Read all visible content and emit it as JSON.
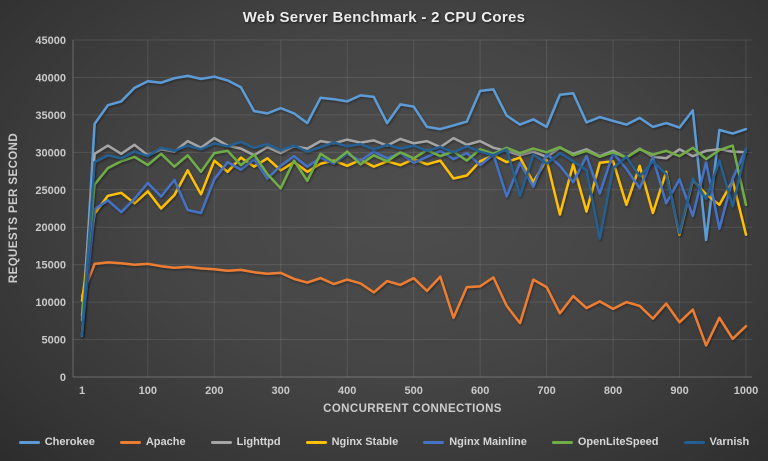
{
  "chart_data": {
    "type": "line",
    "title": "Web Server Benchmark - 2 CPU Cores",
    "xlabel": "CONCURRENT CONNECTIONS",
    "ylabel": "REQUESTS PER SECOND",
    "ylim": [
      0,
      45000
    ],
    "y_tick_step": 5000,
    "x_tick_labels": [
      1,
      100,
      200,
      300,
      400,
      500,
      600,
      700,
      800,
      900,
      1000
    ],
    "grid": true,
    "legend_position": "bottom",
    "colors": {
      "background_center": "#4e4e4e",
      "background_edge": "#262626",
      "gridline": "rgba(255,255,255,0.10)",
      "axis_line": "rgba(255,255,255,0.25)",
      "tick_text": "#c9c9c9",
      "title_text": "#ededed"
    },
    "x": [
      1,
      20,
      40,
      60,
      80,
      100,
      120,
      140,
      160,
      180,
      200,
      220,
      240,
      260,
      280,
      300,
      320,
      340,
      360,
      380,
      400,
      420,
      440,
      460,
      480,
      500,
      520,
      540,
      560,
      580,
      600,
      620,
      640,
      660,
      680,
      700,
      720,
      740,
      760,
      780,
      800,
      820,
      840,
      860,
      880,
      900,
      920,
      940,
      960,
      980,
      1000
    ],
    "series": [
      {
        "name": "Cherokee",
        "color": "#5B9BD5",
        "values": [
          5500,
          33800,
          36300,
          36800,
          38600,
          39500,
          39300,
          39900,
          40200,
          39800,
          40100,
          39600,
          38700,
          35500,
          35200,
          35900,
          35200,
          33900,
          37300,
          37100,
          36800,
          37600,
          37400,
          33900,
          36400,
          36100,
          33400,
          33100,
          33600,
          34100,
          38200,
          38400,
          34900,
          33700,
          34400,
          33400,
          37700,
          37900,
          34000,
          34700,
          34200,
          33700,
          34600,
          33400,
          33900,
          33300,
          35600,
          18300,
          33000,
          32500,
          33100
        ]
      },
      {
        "name": "Apache",
        "color": "#ED7D31",
        "values": [
          10800,
          15100,
          15300,
          15200,
          15000,
          15100,
          14800,
          14600,
          14700,
          14500,
          14400,
          14200,
          14300,
          14000,
          13800,
          13900,
          13100,
          12600,
          13200,
          12400,
          13000,
          12500,
          11300,
          12800,
          12300,
          13200,
          11500,
          13400,
          7900,
          12000,
          12100,
          13300,
          9500,
          7200,
          13000,
          12000,
          8500,
          10800,
          9200,
          10100,
          9100,
          10000,
          9500,
          7800,
          9800,
          7300,
          9000,
          4200,
          7900,
          5100,
          6800
        ]
      },
      {
        "name": "Lighttpd",
        "color": "#A5A5A5",
        "values": [
          8200,
          29800,
          30900,
          29800,
          31000,
          29600,
          30400,
          30100,
          31500,
          30600,
          31900,
          30900,
          30500,
          29600,
          30700,
          29900,
          30800,
          30500,
          31500,
          31200,
          31700,
          31300,
          31600,
          30900,
          31800,
          31200,
          31500,
          30700,
          31900,
          31000,
          31500,
          30600,
          30200,
          29600,
          30100,
          29400,
          30600,
          29800,
          30400,
          29500,
          30200,
          29300,
          30500,
          29400,
          29200,
          30400,
          29500,
          30200,
          30400,
          30100,
          30000
        ]
      },
      {
        "name": "Nginx Stable",
        "color": "#FFC000",
        "values": [
          10200,
          21800,
          24200,
          24600,
          23200,
          24800,
          22500,
          24300,
          27600,
          24400,
          28900,
          27400,
          29300,
          28100,
          29200,
          27600,
          28700,
          27400,
          28500,
          28900,
          28200,
          29000,
          28100,
          28800,
          28300,
          29100,
          28400,
          28900,
          26500,
          26900,
          28800,
          29600,
          28700,
          29300,
          26000,
          29000,
          21700,
          28400,
          22100,
          28600,
          28800,
          23000,
          28200,
          21900,
          27400,
          19000,
          26300,
          24400,
          23000,
          26200,
          19000
        ]
      },
      {
        "name": "Nginx Mainline",
        "color": "#4472C4",
        "values": [
          5800,
          22400,
          23600,
          22000,
          23800,
          25900,
          24100,
          26300,
          22300,
          21900,
          26400,
          28700,
          27700,
          29100,
          26500,
          28200,
          29500,
          28100,
          29300,
          28500,
          29800,
          28900,
          30100,
          29200,
          29900,
          28600,
          29400,
          30200,
          29100,
          29900,
          28300,
          29700,
          24100,
          28600,
          25400,
          29800,
          28200,
          26000,
          29500,
          24500,
          29900,
          27800,
          25200,
          29300,
          23200,
          26400,
          21500,
          28700,
          19800,
          26500,
          30400
        ]
      },
      {
        "name": "OpenLiteSpeed",
        "color": "#70AD47",
        "values": [
          7600,
          25700,
          27900,
          28800,
          29400,
          28300,
          29800,
          28100,
          29600,
          27400,
          29900,
          30200,
          28300,
          29700,
          27100,
          25200,
          28900,
          26200,
          29800,
          28700,
          30100,
          28400,
          29600,
          28800,
          30000,
          29200,
          30300,
          29500,
          30100,
          28900,
          30400,
          29800,
          30600,
          29900,
          30500,
          30000,
          30700,
          29600,
          30200,
          29400,
          30000,
          29300,
          30400,
          29700,
          30200,
          29500,
          30600,
          29100,
          30300,
          30900,
          23000
        ]
      },
      {
        "name": "Varnish",
        "color": "#255E91",
        "values": [
          5600,
          28700,
          29600,
          29200,
          30100,
          29500,
          30600,
          30200,
          30900,
          30400,
          31200,
          30800,
          31400,
          30600,
          31100,
          30300,
          30900,
          30100,
          30700,
          31300,
          30800,
          31100,
          30400,
          31000,
          30500,
          30900,
          30200,
          30700,
          30000,
          30800,
          30100,
          29600,
          30400,
          24200,
          29700,
          28500,
          29900,
          28800,
          27600,
          18500,
          27900,
          29400,
          26800,
          28800,
          27100,
          19200,
          26500,
          23800,
          28900,
          22800,
          30500
        ]
      }
    ]
  }
}
